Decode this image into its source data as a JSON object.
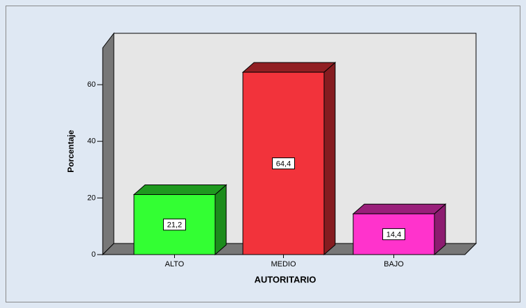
{
  "chart_data": {
    "type": "bar3d",
    "xlabel": "AUTORITARIO",
    "ylabel": "Porcentaje",
    "categories": [
      "ALTO",
      "MEDIO",
      "BAJO"
    ],
    "values": [
      21.2,
      64.4,
      14.4
    ],
    "value_labels": [
      "21,2",
      "64,4",
      "14,4"
    ],
    "colors": [
      "#33ff33",
      "#f2333b",
      "#ff33cc"
    ],
    "ylim": [
      0,
      73
    ],
    "yticks": [
      0,
      20,
      40,
      60
    ]
  }
}
